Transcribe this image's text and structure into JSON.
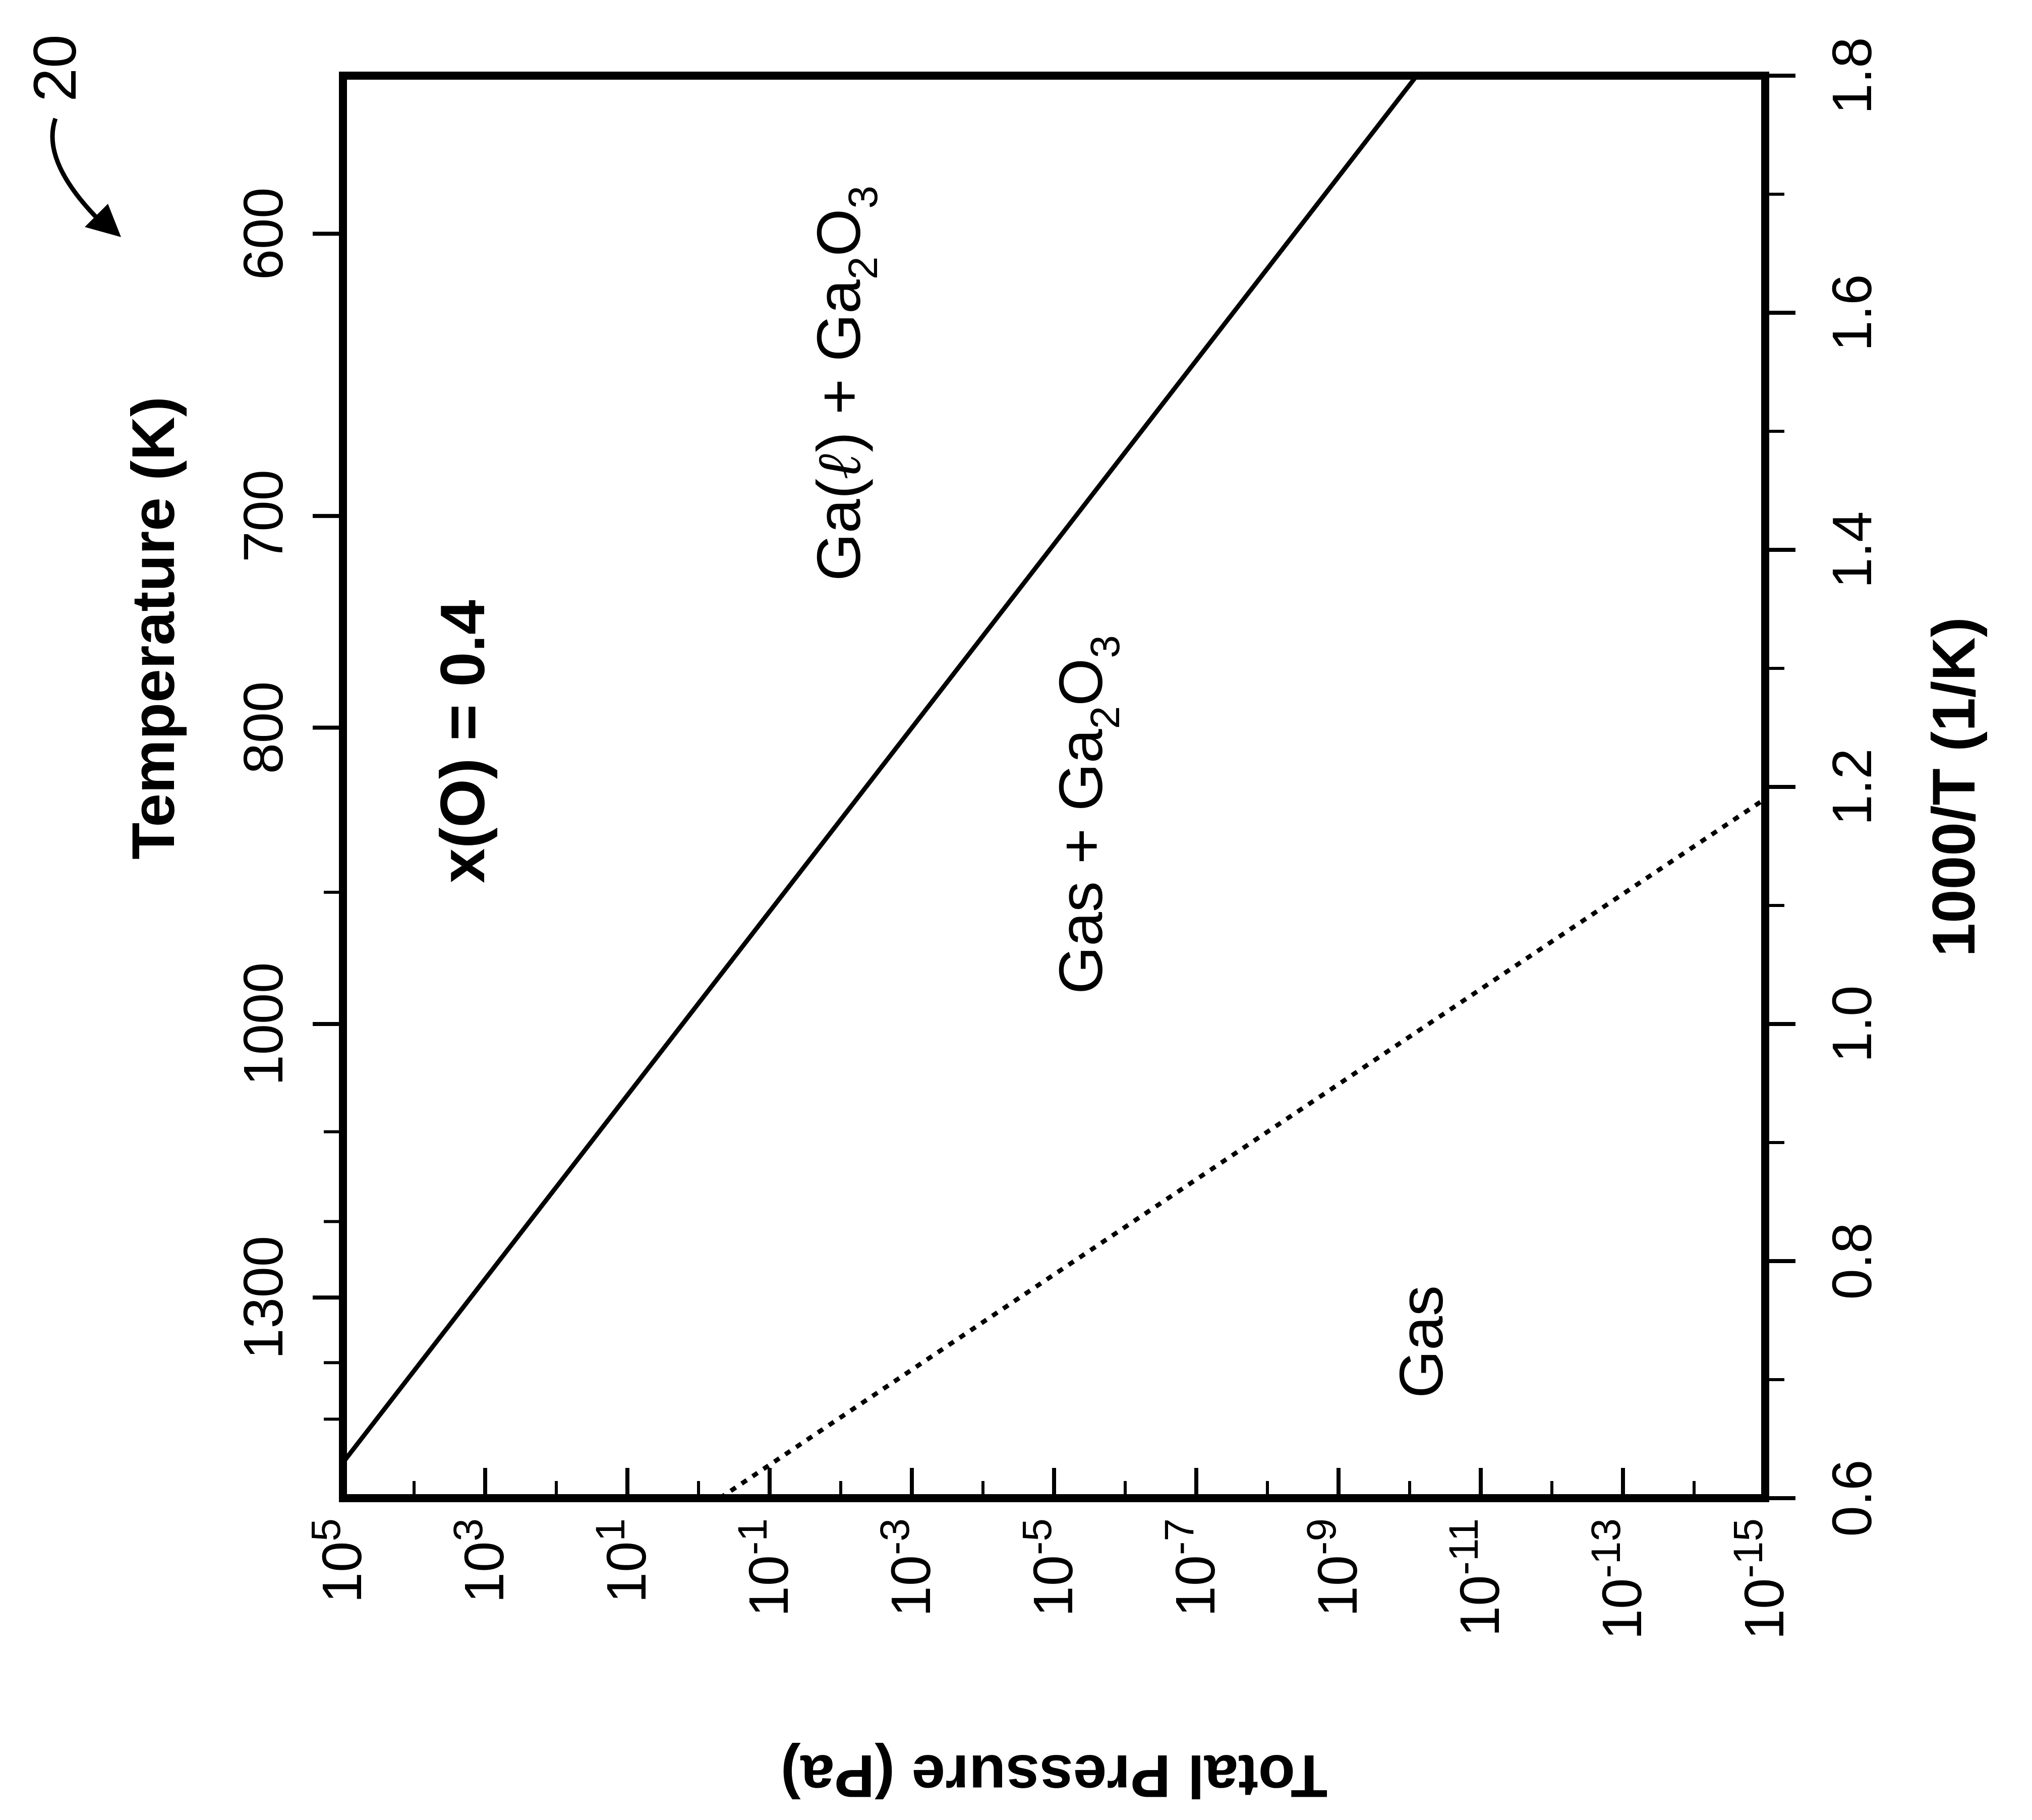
{
  "figure_number": "20",
  "chart_data": {
    "type": "line",
    "axes": {
      "pressure": {
        "label": "Total Pressure (Pa)",
        "scale": "log",
        "range": [
          100000.0,
          1e-15
        ],
        "major_ticks": [
          {
            "base": "10",
            "exp": "5"
          },
          {
            "base": "10",
            "exp": "3"
          },
          {
            "base": "10",
            "exp": "1"
          },
          {
            "base": "10",
            "exp": "-1"
          },
          {
            "base": "10",
            "exp": "-3"
          },
          {
            "base": "10",
            "exp": "-5"
          },
          {
            "base": "10",
            "exp": "-7"
          },
          {
            "base": "10",
            "exp": "-9"
          },
          {
            "base": "10",
            "exp": "-11"
          },
          {
            "base": "10",
            "exp": "-13"
          },
          {
            "base": "10",
            "exp": "-15"
          }
        ]
      },
      "inverse_temperature": {
        "label": "1000/T (1/K)",
        "range": [
          0.6,
          1.8
        ],
        "tick_labels": [
          "0.6",
          "0.8",
          "1.0",
          "1.2",
          "1.4",
          "1.6",
          "1.8"
        ]
      },
      "temperature": {
        "label": "Temperature (K)",
        "scale": "reciprocal",
        "tick_labels": [
          "1300",
          "1000",
          "800",
          "700",
          "600"
        ]
      }
    },
    "series": [
      {
        "style": "solid",
        "points": [
          {
            "inv_T": 0.63,
            "log10_P": 5.0
          },
          {
            "inv_T": 1.8,
            "log10_P": -10.1
          }
        ]
      },
      {
        "style": "dotted",
        "points": [
          {
            "inv_T": 0.6,
            "log10_P": -0.3
          },
          {
            "inv_T": 1.19,
            "log10_P": -15.0
          }
        ]
      }
    ],
    "annotations": {
      "composition": "x(O) = 0.4",
      "region_liquid": {
        "prefix": "Ga(",
        "script_l": "ℓ",
        "rest": ") + Ga",
        "sub1": "2",
        "mid": "O",
        "sub2": "3"
      },
      "region_gas_oxide": {
        "text": "Gas + Ga",
        "sub1": "2",
        "mid": "O",
        "sub2": "3"
      },
      "region_gas": "Gas"
    },
    "grid": false
  }
}
